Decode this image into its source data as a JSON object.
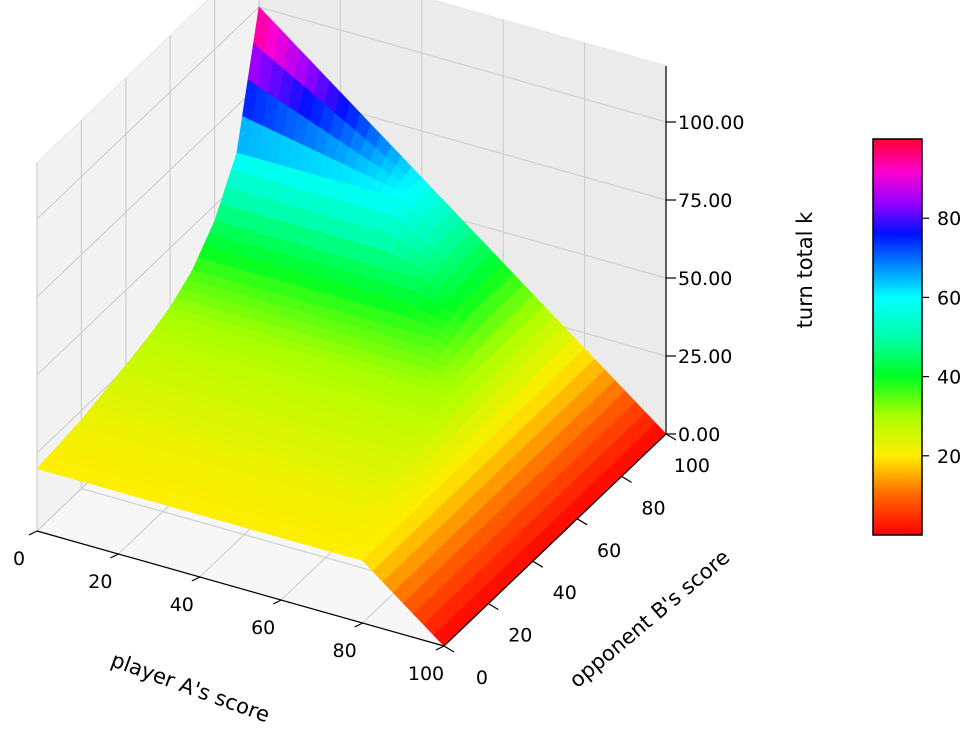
{
  "chart_data": {
    "type": "surface3d",
    "title": "",
    "xlabel": "player A's score",
    "ylabel": "opponent B's score",
    "zlabel": "turn total k",
    "xlim": [
      0,
      100
    ],
    "ylim": [
      0,
      100
    ],
    "zlim": [
      0,
      100
    ],
    "x_ticks": [
      "0",
      "20",
      "40",
      "60",
      "80",
      "100"
    ],
    "y_ticks": [
      "0",
      "20",
      "40",
      "60",
      "80",
      "100"
    ],
    "z_ticks": [
      "0.00",
      "25.00",
      "50.00",
      "75.00",
      "100.00"
    ],
    "colormap": "gist_rainbow_r",
    "colorbar": {
      "ticks": [
        "20",
        "40",
        "60",
        "80"
      ],
      "range": [
        0,
        100
      ]
    },
    "surface_profile": {
      "description_free_values": true,
      "player_score_samples": [
        0,
        10,
        20,
        30,
        40,
        50,
        60,
        70,
        80,
        90,
        100
      ],
      "opponent_score_samples": [
        0,
        10,
        20,
        30,
        40,
        50,
        60,
        70,
        80,
        90,
        100
      ],
      "turn_total_grid": [
        [
          20,
          20,
          20,
          20,
          20,
          20,
          20,
          20,
          20,
          10,
          0
        ],
        [
          21,
          21,
          21,
          21,
          21,
          21,
          21,
          21,
          20,
          10,
          0
        ],
        [
          22,
          22,
          22,
          22,
          22,
          22,
          22,
          22,
          20,
          10,
          0
        ],
        [
          24,
          24,
          24,
          24,
          24,
          24,
          24,
          24,
          20,
          10,
          0
        ],
        [
          26,
          26,
          26,
          26,
          26,
          26,
          26,
          26,
          20,
          10,
          0
        ],
        [
          28,
          28,
          28,
          28,
          28,
          28,
          28,
          28,
          20,
          10,
          0
        ],
        [
          31,
          31,
          31,
          31,
          31,
          31,
          31,
          30,
          20,
          10,
          0
        ],
        [
          36,
          36,
          36,
          36,
          36,
          36,
          36,
          30,
          20,
          10,
          0
        ],
        [
          45,
          45,
          45,
          45,
          45,
          45,
          40,
          30,
          20,
          10,
          0
        ],
        [
          60,
          60,
          60,
          60,
          60,
          50,
          40,
          30,
          20,
          10,
          0
        ],
        [
          100,
          90,
          80,
          70,
          60,
          50,
          40,
          30,
          20,
          10,
          0
        ]
      ]
    }
  }
}
